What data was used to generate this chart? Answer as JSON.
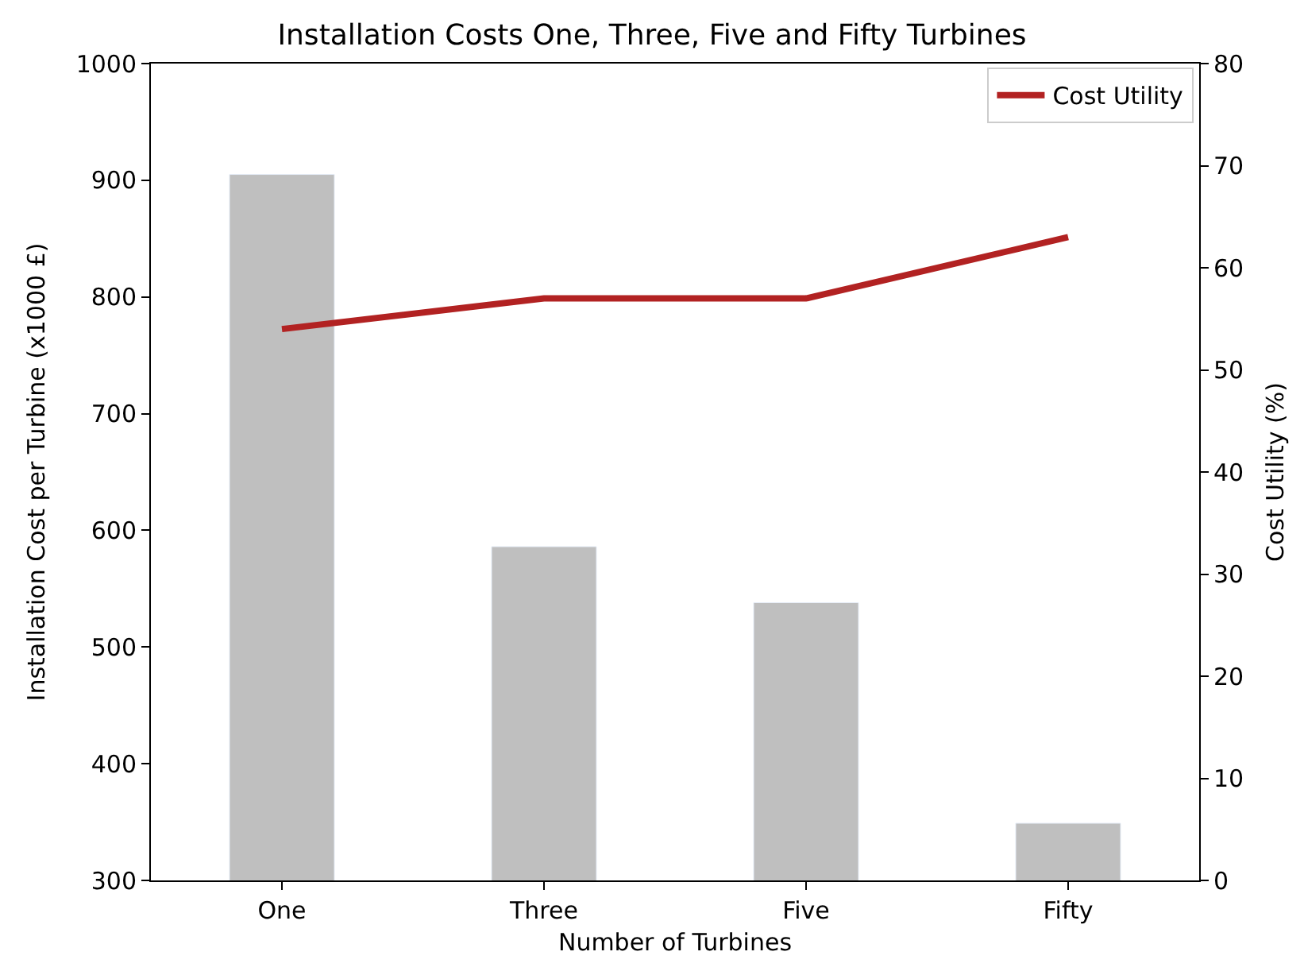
{
  "chart_data": {
    "type": "bar",
    "title": "Installation Costs One, Three, Five and Fifty Turbines",
    "xlabel": "Number of Turbines",
    "ylabel": "Installation Cost per Turbine (x1000 £)",
    "y2label": "Cost Utility (%)",
    "categories": [
      "One",
      "Three",
      "Five",
      "Fifty"
    ],
    "series": [
      {
        "color": "#bfbfbf",
        "values": [
          905,
          586,
          538,
          349
        ]
      },
      {
        "type": "line",
        "name": "Cost Utility",
        "color": "#b22222",
        "axis": "y2",
        "values": [
          54,
          57,
          57,
          63
        ]
      }
    ],
    "ylim": [
      300,
      1000
    ],
    "yticks": [
      300,
      400,
      500,
      600,
      700,
      800,
      900,
      1000
    ],
    "y2lim": [
      0,
      80
    ],
    "y2ticks": [
      0,
      10,
      20,
      30,
      40,
      50,
      60,
      70,
      80
    ],
    "legend": "top right",
    "marker": "none",
    "line_style": "solid"
  }
}
